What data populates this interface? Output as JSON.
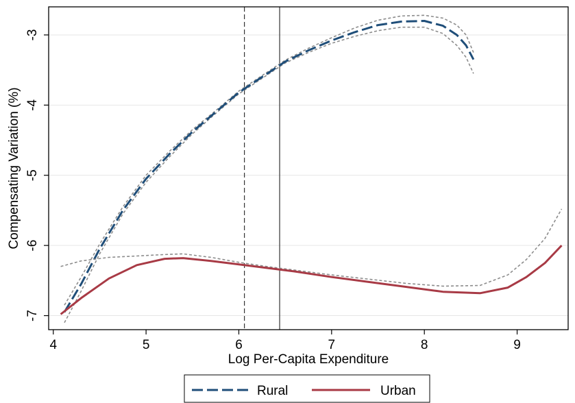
{
  "chart_data": {
    "type": "line",
    "xlabel": "Log Per-Capita Expenditure",
    "ylabel": "Compensating Variation (%)",
    "xlim": [
      3.95,
      9.55
    ],
    "ylim": [
      -7.2,
      -2.6
    ],
    "xticks": [
      4,
      5,
      6,
      7,
      8,
      9
    ],
    "yticks": [
      -3,
      -4,
      -5,
      -6,
      -7
    ],
    "grid": "horizontal",
    "legend_position": "bottom",
    "vlines": [
      {
        "x": 6.06,
        "style": "dashed"
      },
      {
        "x": 6.44,
        "style": "solid"
      }
    ],
    "series": [
      {
        "name": "Rural",
        "color": "#1f4e79",
        "style": "dashed",
        "x": [
          4.12,
          4.3,
          4.5,
          4.75,
          5.0,
          5.25,
          5.5,
          5.75,
          6.0,
          6.25,
          6.5,
          6.75,
          7.0,
          7.25,
          7.5,
          7.75,
          8.0,
          8.2,
          8.35,
          8.45,
          8.53
        ],
        "y": [
          -6.95,
          -6.55,
          -6.05,
          -5.5,
          -5.05,
          -4.7,
          -4.38,
          -4.1,
          -3.82,
          -3.6,
          -3.38,
          -3.22,
          -3.08,
          -2.96,
          -2.86,
          -2.81,
          -2.8,
          -2.87,
          -3.0,
          -3.15,
          -3.35
        ],
        "ci_upper": [
          -6.85,
          -6.45,
          -5.98,
          -5.45,
          -5.0,
          -4.66,
          -4.35,
          -4.08,
          -3.8,
          -3.58,
          -3.36,
          -3.19,
          -3.04,
          -2.9,
          -2.79,
          -2.73,
          -2.72,
          -2.76,
          -2.86,
          -3.0,
          -3.25
        ],
        "ci_lower": [
          -7.1,
          -6.65,
          -6.12,
          -5.55,
          -5.1,
          -4.74,
          -4.41,
          -4.12,
          -3.84,
          -3.62,
          -3.4,
          -3.25,
          -3.12,
          -3.02,
          -2.94,
          -2.89,
          -2.89,
          -2.98,
          -3.15,
          -3.32,
          -3.55
        ]
      },
      {
        "name": "Urban",
        "color": "#a83a45",
        "style": "solid",
        "x": [
          4.08,
          4.3,
          4.6,
          4.9,
          5.2,
          5.4,
          5.7,
          6.0,
          6.3,
          6.6,
          7.0,
          7.4,
          7.8,
          8.2,
          8.6,
          8.9,
          9.1,
          9.3,
          9.48
        ],
        "y": [
          -6.98,
          -6.75,
          -6.47,
          -6.28,
          -6.19,
          -6.18,
          -6.22,
          -6.27,
          -6.32,
          -6.37,
          -6.45,
          -6.52,
          -6.59,
          -6.66,
          -6.68,
          -6.6,
          -6.45,
          -6.25,
          -6.0
        ],
        "ci_upper": [
          -6.3,
          -6.22,
          -6.17,
          -6.15,
          -6.13,
          -6.12,
          -6.17,
          -6.24,
          -6.3,
          -6.35,
          -6.42,
          -6.48,
          -6.54,
          -6.58,
          -6.57,
          -6.42,
          -6.2,
          -5.9,
          -5.48
        ],
        "ci_lower": null
      }
    ]
  },
  "legend": {
    "rural_label": "Rural",
    "urban_label": "Urban"
  },
  "colors": {
    "rural": "#1f4e79",
    "urban": "#a83a45",
    "ci": "#8c8c8c",
    "grid": "#e6e6e6",
    "refline": "#333333"
  }
}
